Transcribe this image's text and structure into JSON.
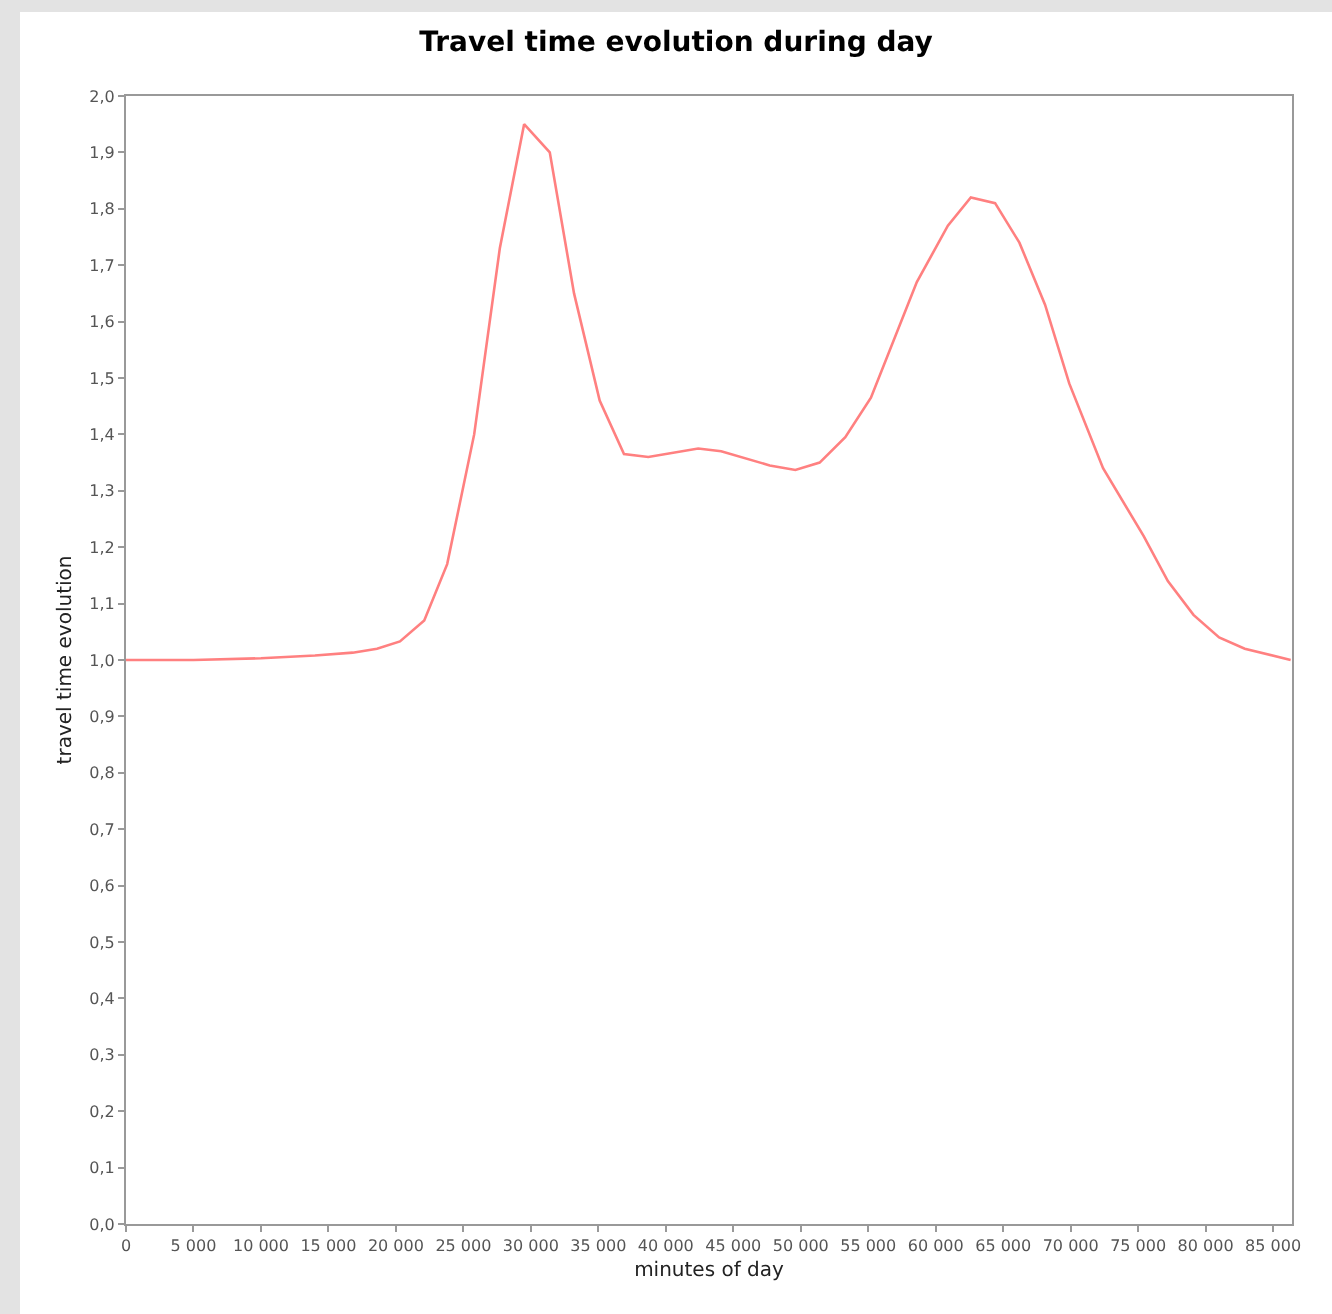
{
  "chart_data": {
    "type": "line",
    "title": "Travel time evolution during day",
    "xlabel": "minutes of day",
    "ylabel": "travel time evolution",
    "x": [
      0,
      5000,
      10000,
      14000,
      16800,
      18600,
      20300,
      22100,
      23800,
      25800,
      27700,
      29500,
      31400,
      33200,
      35100,
      36900,
      38700,
      42400,
      44100,
      47700,
      49600,
      51400,
      53300,
      55200,
      58600,
      60900,
      62600,
      64400,
      66200,
      68100,
      69900,
      72400,
      75400,
      77200,
      79100,
      81000,
      82900,
      86300
    ],
    "series": [
      {
        "color": "#ff8080",
        "values": [
          1.0,
          1.0,
          1.003,
          1.008,
          1.013,
          1.02,
          1.033,
          1.07,
          1.17,
          1.4,
          1.73,
          1.95,
          1.9,
          1.65,
          1.46,
          1.365,
          1.36,
          1.375,
          1.37,
          1.345,
          1.337,
          1.35,
          1.395,
          1.465,
          1.67,
          1.77,
          1.82,
          1.81,
          1.74,
          1.63,
          1.49,
          1.34,
          1.22,
          1.14,
          1.08,
          1.04,
          1.02,
          1.0
        ]
      }
    ],
    "xlim": [
      0,
      86400
    ],
    "xticks": [
      {
        "value": 0,
        "label": "0"
      },
      {
        "value": 5000,
        "label": "5 000"
      },
      {
        "value": 10000,
        "label": "10 000"
      },
      {
        "value": 15000,
        "label": "15 000"
      },
      {
        "value": 20000,
        "label": "20 000"
      },
      {
        "value": 25000,
        "label": "25 000"
      },
      {
        "value": 30000,
        "label": "30 000"
      },
      {
        "value": 35000,
        "label": "35 000"
      },
      {
        "value": 40000,
        "label": "40 000"
      },
      {
        "value": 45000,
        "label": "45 000"
      },
      {
        "value": 50000,
        "label": "50 000"
      },
      {
        "value": 55000,
        "label": "55 000"
      },
      {
        "value": 60000,
        "label": "60 000"
      },
      {
        "value": 65000,
        "label": "65 000"
      },
      {
        "value": 70000,
        "label": "70 000"
      },
      {
        "value": 75000,
        "label": "75 000"
      },
      {
        "value": 80000,
        "label": "80 000"
      },
      {
        "value": 85000,
        "label": "85 000"
      }
    ],
    "ylim": [
      0,
      2
    ],
    "yticks": [
      {
        "value": 0,
        "label": "0,0"
      },
      {
        "value": 0.1,
        "label": "0,1"
      },
      {
        "value": 0.2,
        "label": "0,2"
      },
      {
        "value": 0.3,
        "label": "0,3"
      },
      {
        "value": 0.4,
        "label": "0,4"
      },
      {
        "value": 0.5,
        "label": "0,5"
      },
      {
        "value": 0.6,
        "label": "0,6"
      },
      {
        "value": 0.7,
        "label": "0,7"
      },
      {
        "value": 0.8,
        "label": "0,8"
      },
      {
        "value": 0.9,
        "label": "0,9"
      },
      {
        "value": 1,
        "label": "1,0"
      },
      {
        "value": 1.1,
        "label": "1,1"
      },
      {
        "value": 1.2,
        "label": "1,2"
      },
      {
        "value": 1.3,
        "label": "1,3"
      },
      {
        "value": 1.4,
        "label": "1,4"
      },
      {
        "value": 1.5,
        "label": "1,5"
      },
      {
        "value": 1.6,
        "label": "1,6"
      },
      {
        "value": 1.7,
        "label": "1,7"
      },
      {
        "value": 1.8,
        "label": "1,8"
      },
      {
        "value": 1.9,
        "label": "1,9"
      },
      {
        "value": 2,
        "label": "2,0"
      }
    ],
    "grid": false,
    "marker": "none",
    "line_style": "solid"
  }
}
